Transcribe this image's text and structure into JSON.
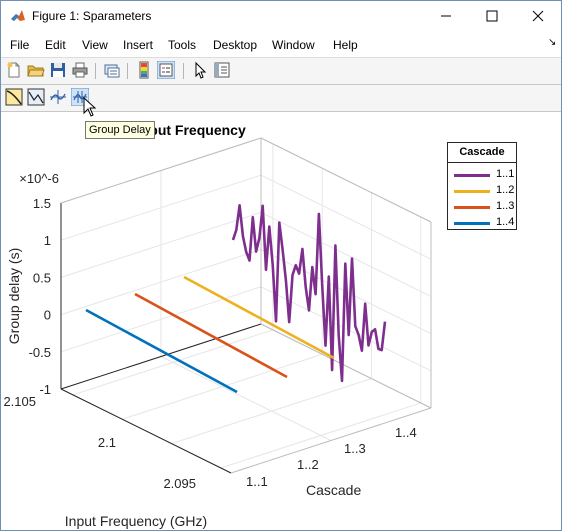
{
  "window": {
    "title": "Figure 1: Sparameters",
    "min_glyph": "—",
    "max_glyph": "☐",
    "close_glyph": "✕"
  },
  "menu": [
    "File",
    "Edit",
    "View",
    "Insert",
    "Tools",
    "Desktop",
    "Window",
    "Help"
  ],
  "menu_overflow": "↘",
  "toolbar": {
    "icons": [
      "new-figure-icon",
      "open-file-icon",
      "save-icon",
      "print-icon",
      "link-icon",
      "colorbar-icon",
      "legend-icon",
      "pointer-icon",
      "property-editor-icon"
    ]
  },
  "toolbar2": {
    "icons": [
      "rf-plot-1-icon",
      "rf-plot-2-icon",
      "rf-plot-3-icon",
      "group-delay-icon"
    ]
  },
  "tooltip": "Group Delay",
  "plot_title": "s11 vs. Input Frequency",
  "legend": {
    "title": "Cascade",
    "entries": [
      "1..1",
      "1..2",
      "1..3",
      "1..4"
    ]
  },
  "chart_data": {
    "type": "line",
    "title": "s11 vs. Input Frequency",
    "x_label": "Cascade",
    "y_label": "Input Frequency (GHz)",
    "z_label": "Group delay (s)",
    "z_exponent": "×10^-6",
    "x_categories": [
      "1..1",
      "1..2",
      "1..3",
      "1..4"
    ],
    "y_ticks": [
      "2.095",
      "2.1",
      "2.105"
    ],
    "z_ticks": [
      "-1",
      "-0.5",
      "0",
      "0.5",
      "1",
      "1.5"
    ],
    "z_range": [
      -1.0,
      1.5
    ],
    "grid": true,
    "legend_position": "top-right",
    "series": [
      {
        "name": "1..1",
        "color": "#7e2f8e",
        "z": [
          0.5,
          0.65,
          1.0,
          0.6,
          0.4,
          0.3,
          0.9,
          0.45,
          0.65,
          1.1,
          0.25,
          0.85,
          0.35,
          -0.4,
          0.95,
          0.6,
          0.2,
          -0.35,
          0.3,
          0.45,
          0.35,
          0.7,
          0.2,
          -0.1,
          0.5,
          0.15,
          1.25,
          0.3,
          -0.5,
          0.45,
          -0.8,
          0.9,
          -0.3,
          -0.9,
          0.7,
          -0.25,
          0.8,
          -0.1,
          -0.2,
          -0.4,
          0.25,
          -0.3,
          -0.1,
          -0.05,
          -0.3,
          -0.3,
          0.1
        ]
      },
      {
        "name": "1..2",
        "color": "#edb120",
        "z": [
          0,
          0
        ]
      },
      {
        "name": "1..3",
        "color": "#d95319",
        "z": [
          0,
          0
        ]
      },
      {
        "name": "1..4",
        "color": "#0072bd",
        "z": [
          0,
          0
        ]
      }
    ]
  }
}
